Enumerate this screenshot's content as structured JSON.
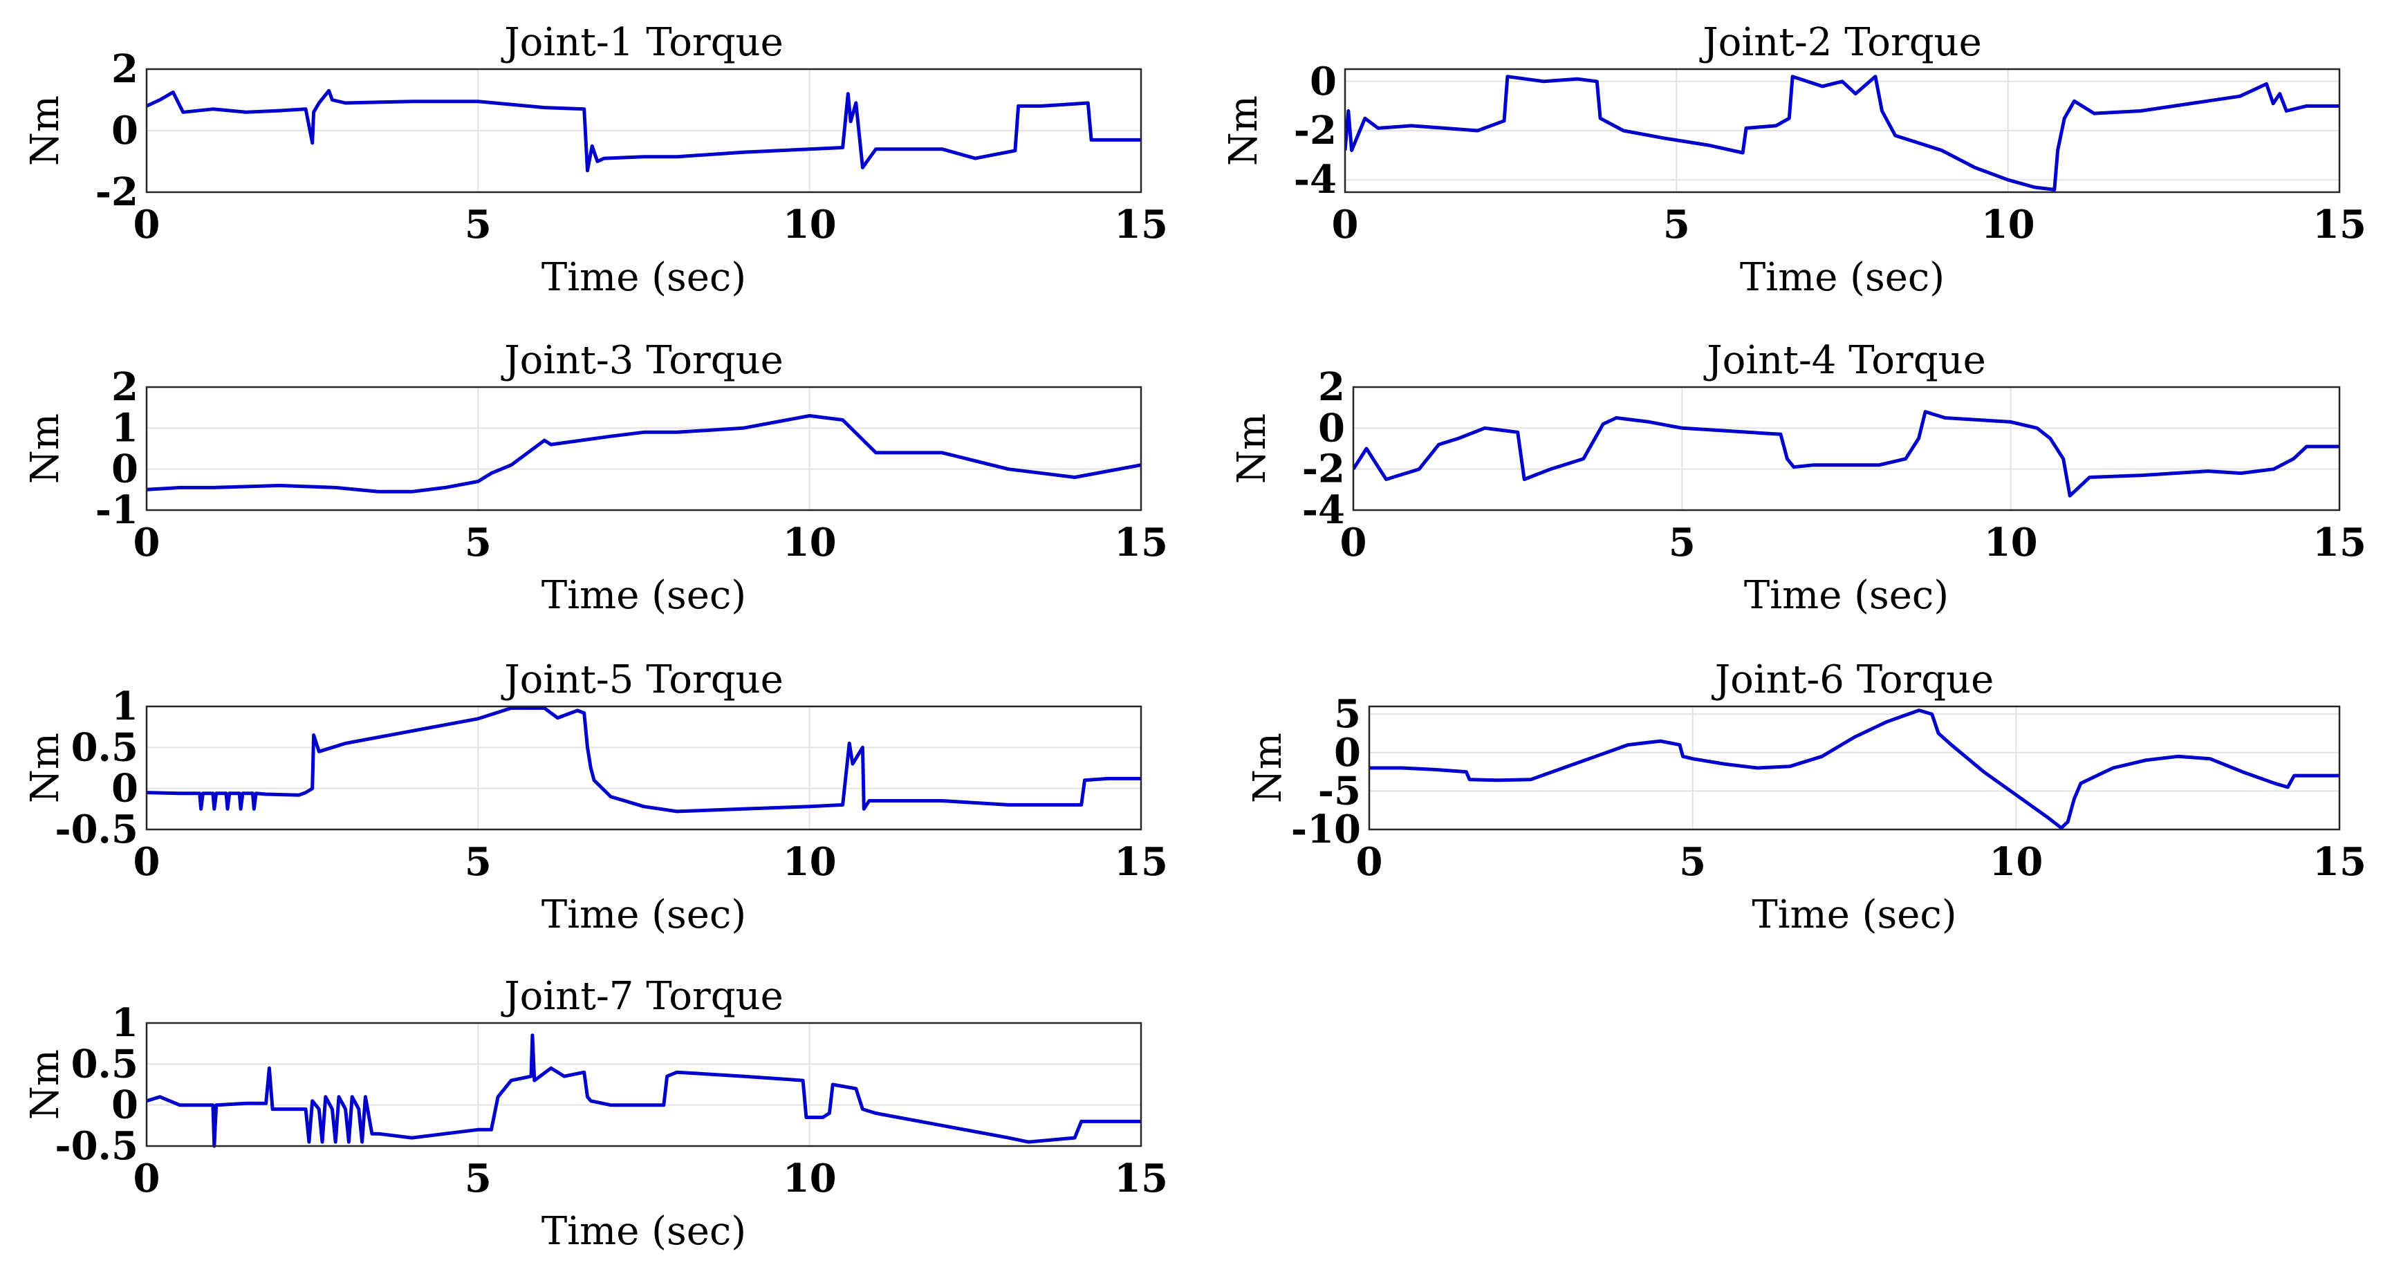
{
  "chart_data": [
    {
      "type": "line",
      "title": "Joint-1 Torque",
      "xlabel": "Time (sec)",
      "ylabel": "Nm",
      "xlim": [
        0,
        15
      ],
      "ylim": [
        -2,
        2
      ],
      "xticks": [
        "0",
        "5",
        "10",
        "15"
      ],
      "yticks": [
        "2",
        "0",
        "-2"
      ],
      "grid": true,
      "color": "#0000cc",
      "series": [
        {
          "name": "Joint-1 Torque",
          "x": [
            0,
            0.2,
            0.4,
            0.55,
            1,
            1.5,
            2,
            2.4,
            2.5,
            2.52,
            2.6,
            2.75,
            2.8,
            3.0,
            4,
            5,
            6,
            6.6,
            6.65,
            6.72,
            6.8,
            6.9,
            7.5,
            8,
            9,
            10,
            10.5,
            10.58,
            10.62,
            10.7,
            10.8,
            11.0,
            11.5,
            12,
            12.5,
            13.1,
            13.15,
            13.5,
            14.2,
            14.25,
            15
          ],
          "y": [
            0.8,
            1.0,
            1.25,
            0.6,
            0.7,
            0.6,
            0.65,
            0.7,
            -0.4,
            0.6,
            0.9,
            1.3,
            1.0,
            0.9,
            0.95,
            0.95,
            0.75,
            0.7,
            -1.3,
            -0.5,
            -1.0,
            -0.9,
            -0.85,
            -0.85,
            -0.7,
            -0.6,
            -0.55,
            1.2,
            0.3,
            0.9,
            -1.2,
            -0.6,
            -0.6,
            -0.6,
            -0.9,
            -0.65,
            0.8,
            0.8,
            0.9,
            -0.3,
            -0.3
          ]
        }
      ]
    },
    {
      "type": "line",
      "title": "Joint-2 Torque",
      "xlabel": "Time (sec)",
      "ylabel": "Nm",
      "xlim": [
        0,
        15
      ],
      "ylim": [
        -4.5,
        0.5
      ],
      "xticks": [
        "0",
        "5",
        "10",
        "15"
      ],
      "yticks": [
        "0",
        "-2",
        "-4"
      ],
      "grid": true,
      "color": "#0000cc",
      "series": [
        {
          "name": "Joint-2 Torque",
          "x": [
            0,
            0.05,
            0.1,
            0.3,
            0.5,
            1,
            1.5,
            2,
            2.4,
            2.45,
            3,
            3.5,
            3.8,
            3.85,
            4.2,
            4.8,
            5.5,
            6.0,
            6.05,
            6.5,
            6.7,
            6.75,
            7.2,
            7.5,
            7.7,
            8.0,
            8.1,
            8.3,
            9,
            9.5,
            10,
            10.4,
            10.7,
            10.75,
            10.85,
            11.0,
            11.3,
            12,
            13,
            13.5,
            13.9,
            14.0,
            14.1,
            14.2,
            14.5,
            15
          ],
          "y": [
            -2.8,
            -1.2,
            -2.8,
            -1.5,
            -1.9,
            -1.8,
            -1.9,
            -2.0,
            -1.6,
            0.2,
            0.0,
            0.1,
            0.0,
            -1.5,
            -2.0,
            -2.3,
            -2.6,
            -2.9,
            -1.9,
            -1.8,
            -1.5,
            0.2,
            -0.2,
            0.0,
            -0.5,
            0.2,
            -1.2,
            -2.2,
            -2.8,
            -3.5,
            -4.0,
            -4.3,
            -4.4,
            -2.8,
            -1.5,
            -0.8,
            -1.3,
            -1.2,
            -0.8,
            -0.6,
            -0.1,
            -0.9,
            -0.5,
            -1.2,
            -1.0,
            -1.0
          ]
        }
      ]
    },
    {
      "type": "line",
      "title": "Joint-3 Torque",
      "xlabel": "Time (sec)",
      "ylabel": "Nm",
      "xlim": [
        0,
        15
      ],
      "ylim": [
        -1,
        2
      ],
      "xticks": [
        "0",
        "5",
        "10",
        "15"
      ],
      "yticks": [
        "2",
        "1",
        "0",
        "-1"
      ],
      "grid": true,
      "color": "#0000cc",
      "series": [
        {
          "name": "Joint-3 Torque",
          "x": [
            0,
            0.5,
            1,
            2,
            2.85,
            3.5,
            4,
            4.5,
            5,
            5.2,
            5.5,
            6.0,
            6.1,
            7,
            7.5,
            8,
            9,
            10,
            10.5,
            11,
            12,
            13,
            14,
            15
          ],
          "y": [
            -0.5,
            -0.45,
            -0.45,
            -0.4,
            -0.45,
            -0.55,
            -0.55,
            -0.45,
            -0.3,
            -0.1,
            0.1,
            0.7,
            0.6,
            0.8,
            0.9,
            0.9,
            1.0,
            1.3,
            1.2,
            0.4,
            0.4,
            0.0,
            -0.2,
            0.1
          ]
        }
      ]
    },
    {
      "type": "line",
      "title": "Joint-4 Torque",
      "xlabel": "Time (sec)",
      "ylabel": "Nm",
      "xlim": [
        0,
        15
      ],
      "ylim": [
        -4,
        2
      ],
      "xticks": [
        "0",
        "5",
        "10",
        "15"
      ],
      "yticks": [
        "2",
        "0",
        "-2",
        "-4"
      ],
      "grid": true,
      "color": "#0000cc",
      "series": [
        {
          "name": "Joint-4 Torque",
          "x": [
            0,
            0.2,
            0.5,
            1,
            1.3,
            1.6,
            2,
            2.5,
            2.6,
            3,
            3.5,
            3.8,
            4,
            4.5,
            5,
            6,
            6.5,
            6.6,
            6.7,
            7,
            7.5,
            8,
            8.4,
            8.6,
            8.7,
            9,
            10,
            10.4,
            10.6,
            10.8,
            10.9,
            11.2,
            12,
            13,
            13.5,
            14,
            14.3,
            14.5,
            15
          ],
          "y": [
            -2.0,
            -1.0,
            -2.5,
            -2.0,
            -0.8,
            -0.5,
            0.0,
            -0.2,
            -2.5,
            -2.0,
            -1.5,
            0.2,
            0.5,
            0.3,
            0.0,
            -0.2,
            -0.3,
            -1.5,
            -1.9,
            -1.8,
            -1.8,
            -1.8,
            -1.5,
            -0.5,
            0.8,
            0.5,
            0.3,
            0.0,
            -0.5,
            -1.5,
            -3.3,
            -2.4,
            -2.3,
            -2.1,
            -2.2,
            -2.0,
            -1.5,
            -0.9,
            -0.9
          ]
        }
      ]
    },
    {
      "type": "line",
      "title": "Joint-5 Torque",
      "xlabel": "Time (sec)",
      "ylabel": "Nm",
      "xlim": [
        0,
        15
      ],
      "ylim": [
        -0.5,
        1
      ],
      "xticks": [
        "0",
        "5",
        "10",
        "15"
      ],
      "yticks": [
        "1",
        "0.5",
        "0",
        "-0.5"
      ],
      "grid": true,
      "color": "#0000cc",
      "series": [
        {
          "name": "Joint-5 Torque",
          "x": [
            0,
            0.5,
            0.8,
            0.82,
            0.85,
            1.0,
            1.02,
            1.05,
            1.2,
            1.22,
            1.25,
            1.4,
            1.42,
            1.45,
            1.6,
            1.62,
            1.65,
            1.8,
            2.3,
            2.4,
            2.5,
            2.52,
            2.6,
            3,
            4,
            5,
            5.5,
            6,
            6.1,
            6.2,
            6.5,
            6.6,
            6.65,
            6.7,
            6.75,
            7,
            7.5,
            8,
            9,
            10,
            10.5,
            10.6,
            10.65,
            10.8,
            10.82,
            10.9,
            11.5,
            12,
            13,
            14.1,
            14.15,
            14.5,
            15
          ],
          "y": [
            -0.05,
            -0.06,
            -0.06,
            -0.25,
            -0.06,
            -0.06,
            -0.25,
            -0.06,
            -0.06,
            -0.25,
            -0.06,
            -0.06,
            -0.25,
            -0.06,
            -0.06,
            -0.25,
            -0.06,
            -0.07,
            -0.08,
            -0.05,
            0.0,
            0.65,
            0.45,
            0.55,
            0.7,
            0.85,
            0.98,
            0.98,
            0.92,
            0.86,
            0.95,
            0.92,
            0.5,
            0.25,
            0.1,
            -0.1,
            -0.22,
            -0.28,
            -0.25,
            -0.22,
            -0.2,
            0.55,
            0.3,
            0.5,
            -0.25,
            -0.15,
            -0.15,
            -0.15,
            -0.2,
            -0.2,
            0.1,
            0.12,
            0.12
          ]
        }
      ]
    },
    {
      "type": "line",
      "title": "Joint-6 Torque",
      "xlabel": "Time (sec)",
      "ylabel": "Nm",
      "xlim": [
        0,
        15
      ],
      "ylim": [
        -10,
        6
      ],
      "xticks": [
        "0",
        "5",
        "10",
        "15"
      ],
      "yticks": [
        "5",
        "0",
        "-5",
        "-10"
      ],
      "grid": true,
      "color": "#0000cc",
      "series": [
        {
          "name": "Joint-6 Torque",
          "x": [
            0,
            0.5,
            1,
            1.5,
            1.55,
            2,
            2.5,
            3,
            3.5,
            4,
            4.5,
            4.8,
            4.85,
            5,
            5.5,
            6,
            6.5,
            7,
            7.5,
            8,
            8.5,
            8.7,
            8.8,
            9,
            9.5,
            10,
            10.5,
            10.7,
            10.8,
            10.9,
            11,
            11.5,
            12,
            12.5,
            13,
            13.5,
            14,
            14.2,
            14.3,
            15
          ],
          "y": [
            -2.0,
            -2.0,
            -2.2,
            -2.5,
            -3.5,
            -3.6,
            -3.5,
            -2.0,
            -0.5,
            1.0,
            1.5,
            1.0,
            -0.5,
            -0.8,
            -1.5,
            -2.0,
            -1.8,
            -0.5,
            2.0,
            4.0,
            5.5,
            5.0,
            2.5,
            1.0,
            -2.5,
            -5.5,
            -8.5,
            -9.8,
            -9.0,
            -6.0,
            -4.0,
            -2.0,
            -1.0,
            -0.5,
            -0.8,
            -2.5,
            -4.0,
            -4.5,
            -3.0,
            -3.0
          ]
        }
      ]
    },
    {
      "type": "line",
      "title": "Joint-7 Torque",
      "xlabel": "Time (sec)",
      "ylabel": "Nm",
      "xlim": [
        0,
        15
      ],
      "ylim": [
        -0.5,
        1
      ],
      "xticks": [
        "0",
        "5",
        "10",
        "15"
      ],
      "yticks": [
        "1",
        "0.5",
        "0",
        "-0.5"
      ],
      "grid": true,
      "color": "#0000cc",
      "series": [
        {
          "name": "Joint-7 Torque",
          "x": [
            0,
            0.2,
            0.5,
            1.0,
            1.02,
            1.05,
            1.5,
            1.8,
            1.85,
            1.9,
            2.0,
            2.4,
            2.45,
            2.5,
            2.6,
            2.65,
            2.7,
            2.8,
            2.85,
            2.9,
            3.0,
            3.05,
            3.1,
            3.2,
            3.25,
            3.3,
            3.4,
            3.5,
            4,
            4.5,
            5.0,
            5.2,
            5.3,
            5.5,
            5.8,
            5.82,
            5.85,
            6.1,
            6.3,
            6.6,
            6.65,
            6.7,
            7.0,
            7.5,
            7.8,
            7.85,
            8,
            9,
            9.9,
            9.95,
            10.2,
            10.3,
            10.35,
            10.7,
            10.8,
            11,
            12,
            13,
            13.3,
            14,
            14.1,
            14.5,
            15
          ],
          "y": [
            0.05,
            0.1,
            0.0,
            0.0,
            -0.5,
            0.0,
            0.02,
            0.02,
            0.45,
            -0.05,
            -0.05,
            -0.05,
            -0.45,
            0.05,
            -0.05,
            -0.45,
            0.1,
            -0.05,
            -0.45,
            0.1,
            -0.05,
            -0.45,
            0.1,
            -0.05,
            -0.45,
            0.1,
            -0.35,
            -0.35,
            -0.4,
            -0.35,
            -0.3,
            -0.3,
            0.1,
            0.3,
            0.35,
            0.85,
            0.3,
            0.45,
            0.35,
            0.4,
            0.1,
            0.05,
            0.0,
            0.0,
            0.0,
            0.35,
            0.4,
            0.35,
            0.3,
            -0.15,
            -0.15,
            -0.1,
            0.25,
            0.2,
            -0.05,
            -0.1,
            -0.25,
            -0.4,
            -0.45,
            -0.4,
            -0.2,
            -0.2,
            -0.2
          ]
        }
      ]
    }
  ]
}
